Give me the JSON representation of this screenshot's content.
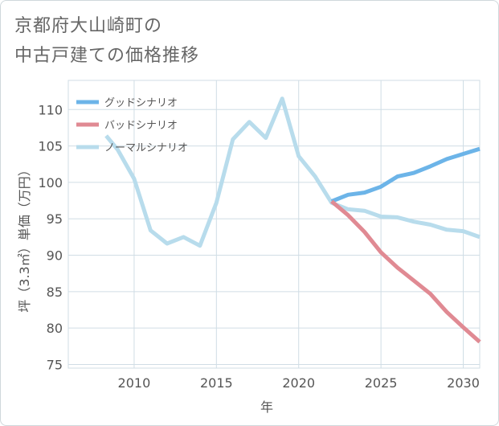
{
  "chart_data": {
    "type": "line",
    "title_lines": [
      "京都府大山崎町の",
      "中古戸建ての価格推移"
    ],
    "xlabel": "年",
    "ylabel": "坪（3.3㎡）単価（万円）",
    "xlim": [
      2006,
      2031
    ],
    "ylim": [
      74.5,
      114
    ],
    "x_ticks": [
      2010,
      2015,
      2020,
      2025,
      2030
    ],
    "y_ticks": [
      75,
      80,
      85,
      90,
      95,
      100,
      105,
      110
    ],
    "grid": true,
    "legend_position": "top-left",
    "series": [
      {
        "name": "グッドシナリオ",
        "color": "#6cb4e8",
        "x": [
          2022,
          2023,
          2024,
          2025,
          2026,
          2027,
          2028,
          2029,
          2030,
          2031
        ],
        "values": [
          97.4,
          98.3,
          98.6,
          99.4,
          100.8,
          101.3,
          102.2,
          103.2,
          103.9,
          104.6
        ]
      },
      {
        "name": "バッドシナリオ",
        "color": "#e08a93",
        "x": [
          2022,
          2023,
          2024,
          2025,
          2026,
          2027,
          2028,
          2029,
          2030,
          2031
        ],
        "values": [
          97.4,
          95.5,
          93.2,
          90.4,
          88.3,
          86.5,
          84.7,
          82.2,
          80.1,
          78.1
        ]
      },
      {
        "name": "ノーマルシナリオ",
        "color": "#b8dcec",
        "x": [
          2008.3,
          2009,
          2010,
          2011,
          2012,
          2013,
          2014,
          2015,
          2016,
          2017,
          2018,
          2019,
          2020,
          2021,
          2022,
          2023,
          2024,
          2025,
          2026,
          2027,
          2028,
          2029,
          2030,
          2031
        ],
        "values": [
          106.4,
          104.5,
          100.5,
          93.4,
          91.6,
          92.5,
          91.3,
          97.2,
          105.9,
          108.3,
          106.1,
          111.5,
          103.6,
          100.8,
          97.2,
          96.3,
          96.1,
          95.3,
          95.2,
          94.6,
          94.2,
          93.5,
          93.3,
          92.5
        ]
      }
    ]
  }
}
